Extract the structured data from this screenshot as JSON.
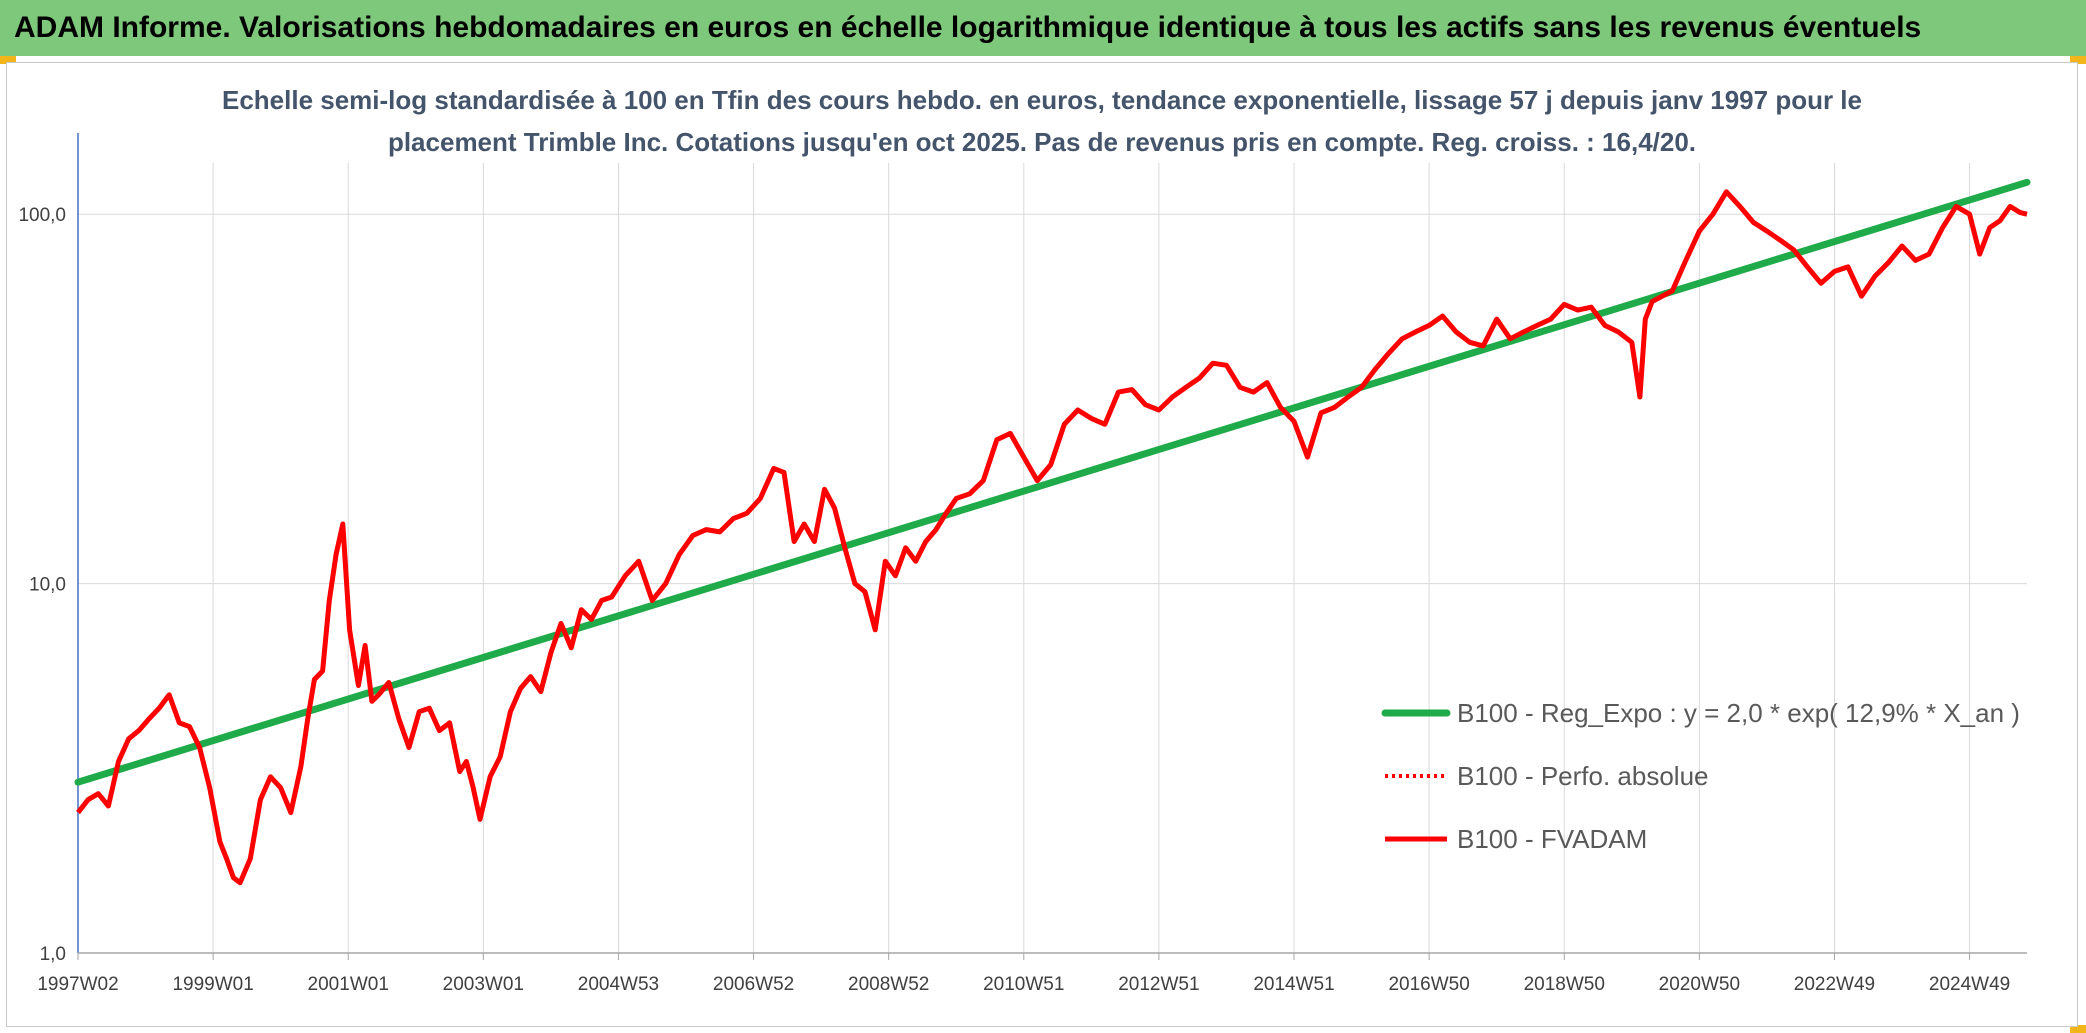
{
  "banner": {
    "title": "ADAM Informe. Valorisations hebdomadaires en euros en échelle logarithmique identique à tous les actifs sans les revenus éventuels"
  },
  "colors": {
    "banner": "#7dc87a",
    "corner_accent": "#f2b51a",
    "trend": "#1fab4a",
    "price": "#ff0000",
    "perfo": "#ff0000"
  },
  "chart_data": {
    "type": "line",
    "title_lines": [
      "Echelle semi-log standardisée à 100 en Tfin des cours hebdo. en euros, tendance exponentielle, lissage 57 j depuis janv 1997 pour le",
      "placement Trimble Inc. Cotations jusqu'en oct 2025. Pas de revenus pris en compte. Reg. croiss. : 16,4/20."
    ],
    "y_scale": "log",
    "ylim": [
      1,
      200
    ],
    "y_ticks": [
      {
        "value": 1,
        "label": "1,0"
      },
      {
        "value": 10,
        "label": "10,0"
      },
      {
        "value": 100,
        "label": "100,0"
      }
    ],
    "xlim": [
      1997.0,
      2025.85
    ],
    "x_ticks": [
      {
        "value": 1997.0,
        "label": "1997W02"
      },
      {
        "value": 1999.0,
        "label": "1999W01"
      },
      {
        "value": 2001.0,
        "label": "2001W01"
      },
      {
        "value": 2003.0,
        "label": "2003W01"
      },
      {
        "value": 2005.0,
        "label": "2004W53"
      },
      {
        "value": 2007.0,
        "label": "2006W52"
      },
      {
        "value": 2009.0,
        "label": "2008W52"
      },
      {
        "value": 2011.0,
        "label": "2010W51"
      },
      {
        "value": 2013.0,
        "label": "2012W51"
      },
      {
        "value": 2015.0,
        "label": "2014W51"
      },
      {
        "value": 2017.0,
        "label": "2016W50"
      },
      {
        "value": 2019.0,
        "label": "2018W50"
      },
      {
        "value": 2021.0,
        "label": "2020W50"
      },
      {
        "value": 2023.0,
        "label": "2022W49"
      },
      {
        "value": 2025.0,
        "label": "2024W49"
      }
    ],
    "grid": true,
    "legend_position": "right",
    "series": [
      {
        "name": "B100 - Reg_Expo : y = 2,0 * exp( 12,9% *  X_an )",
        "style": "solid-thick",
        "x": [
          1997.0,
          2025.85
        ],
        "y": [
          2.9,
          122
        ]
      },
      {
        "name": "B100 - Perfo. absolue",
        "style": "dotted",
        "x": [],
        "y": []
      },
      {
        "name": "B100 - FVADAM",
        "style": "solid",
        "x": [
          1997.0,
          1997.15,
          1997.3,
          1997.45,
          1997.6,
          1997.75,
          1997.9,
          1998.05,
          1998.2,
          1998.35,
          1998.5,
          1998.65,
          1998.8,
          1998.95,
          1999.1,
          1999.2,
          1999.3,
          1999.4,
          1999.55,
          1999.7,
          1999.85,
          2000.0,
          2000.15,
          2000.3,
          2000.4,
          2000.5,
          2000.62,
          2000.72,
          2000.82,
          2000.92,
          2001.02,
          2001.15,
          2001.25,
          2001.35,
          2001.45,
          2001.6,
          2001.75,
          2001.9,
          2002.05,
          2002.2,
          2002.35,
          2002.5,
          2002.65,
          2002.75,
          2002.85,
          2002.95,
          2003.1,
          2003.25,
          2003.4,
          2003.55,
          2003.7,
          2003.85,
          2004.0,
          2004.15,
          2004.3,
          2004.45,
          2004.6,
          2004.75,
          2004.9,
          2005.1,
          2005.3,
          2005.5,
          2005.7,
          2005.9,
          2006.1,
          2006.3,
          2006.5,
          2006.7,
          2006.9,
          2007.1,
          2007.3,
          2007.45,
          2007.6,
          2007.75,
          2007.9,
          2008.05,
          2008.2,
          2008.35,
          2008.5,
          2008.65,
          2008.8,
          2008.95,
          2009.1,
          2009.25,
          2009.4,
          2009.55,
          2009.7,
          2009.85,
          2010.0,
          2010.2,
          2010.4,
          2010.6,
          2010.8,
          2011.0,
          2011.2,
          2011.4,
          2011.6,
          2011.8,
          2012.0,
          2012.2,
          2012.4,
          2012.6,
          2012.8,
          2013.0,
          2013.2,
          2013.4,
          2013.6,
          2013.8,
          2014.0,
          2014.2,
          2014.4,
          2014.6,
          2014.8,
          2015.0,
          2015.2,
          2015.4,
          2015.6,
          2015.8,
          2016.0,
          2016.2,
          2016.4,
          2016.6,
          2016.8,
          2017.0,
          2017.2,
          2017.4,
          2017.6,
          2017.8,
          2018.0,
          2018.2,
          2018.4,
          2018.6,
          2018.8,
          2019.0,
          2019.2,
          2019.4,
          2019.6,
          2019.8,
          2020.0,
          2020.12,
          2020.2,
          2020.3,
          2020.45,
          2020.6,
          2020.8,
          2021.0,
          2021.2,
          2021.4,
          2021.6,
          2021.8,
          2022.0,
          2022.2,
          2022.4,
          2022.6,
          2022.8,
          2023.0,
          2023.2,
          2023.4,
          2023.6,
          2023.8,
          2024.0,
          2024.2,
          2024.4,
          2024.6,
          2024.8,
          2025.0,
          2025.15,
          2025.3,
          2025.45,
          2025.6,
          2025.75,
          2025.85
        ],
        "y": [
          2.4,
          2.6,
          2.7,
          2.5,
          3.3,
          3.8,
          4.0,
          4.3,
          4.6,
          5.0,
          4.2,
          4.1,
          3.6,
          2.8,
          2.0,
          1.8,
          1.6,
          1.55,
          1.8,
          2.6,
          3.0,
          2.8,
          2.4,
          3.2,
          4.3,
          5.5,
          5.8,
          9.0,
          12.0,
          14.5,
          7.5,
          5.3,
          6.8,
          4.8,
          5.0,
          5.4,
          4.3,
          3.6,
          4.5,
          4.6,
          4.0,
          4.2,
          3.1,
          3.3,
          2.8,
          2.3,
          3.0,
          3.4,
          4.5,
          5.2,
          5.6,
          5.1,
          6.5,
          7.8,
          6.7,
          8.5,
          8.0,
          9.0,
          9.2,
          10.5,
          11.5,
          9.0,
          10.0,
          12.0,
          13.5,
          14.0,
          13.8,
          15.0,
          15.5,
          17.0,
          20.5,
          20.0,
          13.0,
          14.5,
          13.0,
          18.0,
          16.0,
          12.5,
          10.0,
          9.5,
          7.5,
          11.5,
          10.5,
          12.5,
          11.5,
          13.0,
          14.0,
          15.5,
          17.0,
          17.5,
          19.0,
          24.5,
          25.5,
          22.0,
          19.0,
          21.0,
          27.0,
          29.5,
          28.0,
          27.0,
          33.0,
          33.5,
          30.5,
          29.5,
          32.0,
          34.0,
          36.0,
          39.5,
          39.0,
          34.0,
          33.0,
          35.0,
          30.0,
          27.5,
          22.0,
          29.0,
          30.0,
          32.0,
          34.0,
          38.0,
          42.0,
          46.0,
          48.0,
          50.0,
          53.0,
          48.0,
          45.0,
          44.0,
          52.0,
          46.0,
          48.0,
          50.0,
          52.0,
          57.0,
          55.0,
          56.0,
          50.0,
          48.0,
          45.0,
          32.0,
          52.0,
          58.0,
          60.0,
          62.0,
          75.0,
          90.0,
          100.0,
          115.0,
          105.0,
          95.0,
          90.0,
          85.0,
          80.0,
          72.0,
          65.0,
          70.0,
          72.0,
          60.0,
          68.0,
          74.0,
          82.0,
          75.0,
          78.0,
          92.0,
          105.0,
          100.0,
          78.0,
          92.0,
          96.0,
          105.0,
          101.0,
          100.0
        ]
      }
    ]
  }
}
